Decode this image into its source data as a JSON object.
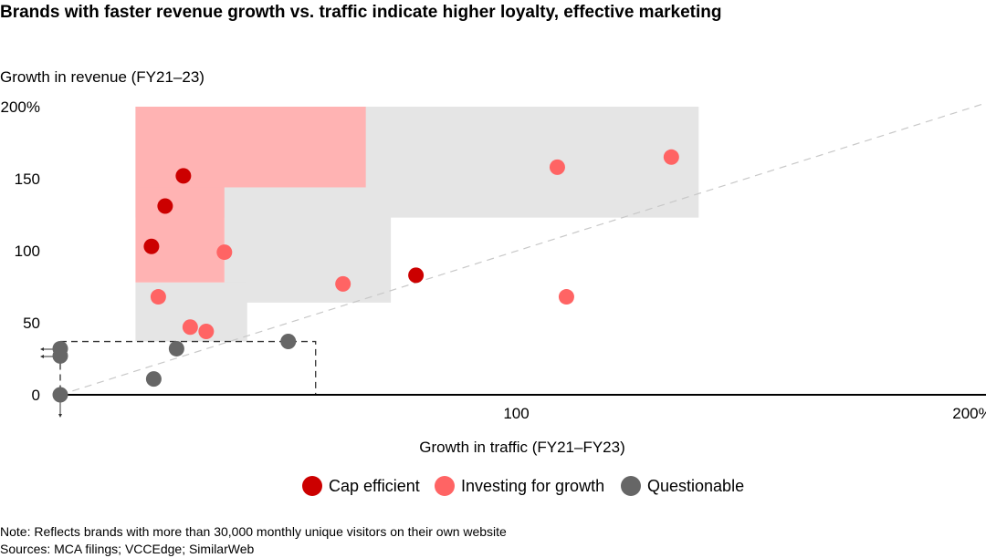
{
  "chart_data": {
    "type": "scatter",
    "title": "Brands with faster revenue growth vs. traffic indicate higher loyalty, effective marketing",
    "xlabel": "Growth in traffic (FY21–FY23)",
    "ylabel": "Growth in revenue (FY21–23)",
    "xlim": [
      0,
      200
    ],
    "ylim": [
      0,
      200
    ],
    "x_ticks": [
      {
        "value": 100,
        "label": "100"
      },
      {
        "value": 200,
        "label": "200%"
      }
    ],
    "y_ticks": [
      {
        "value": 0,
        "label": "0"
      },
      {
        "value": 50,
        "label": "50"
      },
      {
        "value": 100,
        "label": "100"
      },
      {
        "value": 150,
        "label": "150"
      },
      {
        "value": 200,
        "label": "200%"
      }
    ],
    "grid": false,
    "legend_position": "bottom",
    "reference_line": "y = x (dashed)",
    "series": [
      {
        "name": "Cap efficient",
        "color": "#cc0000",
        "points": [
          [
            20,
            103
          ],
          [
            23,
            131
          ],
          [
            27,
            152
          ],
          [
            78,
            83
          ]
        ]
      },
      {
        "name": "Investing for growth",
        "color": "#ff6464",
        "points": [
          [
            21.5,
            68
          ],
          [
            36,
            99
          ],
          [
            28.5,
            47
          ],
          [
            32,
            44
          ],
          [
            62,
            77
          ],
          [
            109,
            158
          ],
          [
            111,
            68
          ],
          [
            134,
            165
          ]
        ]
      },
      {
        "name": "Questionable",
        "color": "#666666",
        "points": [
          [
            0,
            0
          ],
          [
            0,
            32
          ],
          [
            0,
            27
          ],
          [
            20.5,
            11
          ],
          [
            25.5,
            32
          ],
          [
            50,
            37
          ]
        ]
      }
    ],
    "regions": {
      "pink": {
        "color": "#ffb3b3",
        "blocks": [
          [
            16.5,
            144,
            67,
            200
          ],
          [
            16.5,
            78,
            36,
            144
          ]
        ]
      },
      "gray": {
        "color": "#e5e5e5",
        "blocks": [
          [
            16.5,
            123,
            140,
            200
          ],
          [
            36,
            64,
            72.5,
            144
          ],
          [
            16.5,
            37,
            41,
            78
          ]
        ]
      },
      "dashed_box": [
        0,
        0,
        56,
        37
      ]
    },
    "note": "Note: Reflects brands with more than 30,000 monthly unique visitors on their own website",
    "sources": "Sources: MCA filings; VCCEdge; SimilarWeb"
  }
}
